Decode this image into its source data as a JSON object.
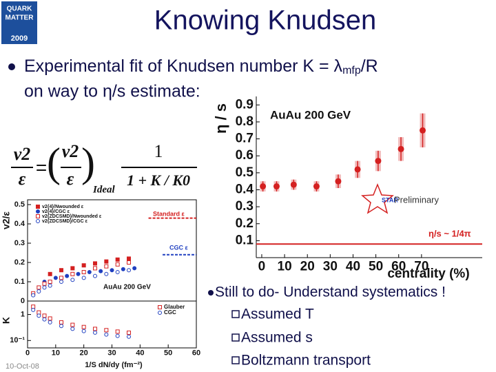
{
  "slide": {
    "logo": [
      "QUARK",
      "MATTER",
      "2009"
    ],
    "title": "Knowing Knudsen",
    "bullet1": {
      "text": "Experimental fit of Knudsen number K = λ",
      "subscript": "mfp",
      "tail": "/R",
      "line2": "on way to η/s estimate:"
    },
    "formula": {
      "lhs_num": "v2",
      "lhs_den": "ε",
      "eq": "=",
      "lparen": "(",
      "rparen": ")",
      "ideal_num": "v2",
      "ideal_den": "ε",
      "ideal": "Ideal",
      "frac_num": "1",
      "frac_den": "1 + K / K0"
    },
    "bullet2": "Still to do- Understand systematics !",
    "subitems": [
      "Assumed T",
      "Assumed s",
      "Boltzmann transport"
    ],
    "footer": "10-Oct-08"
  },
  "chart_data": [
    {
      "type": "scatter",
      "y_label": "η / s",
      "x_label": "centrality (%)",
      "x": [
        0.5,
        6.5,
        14,
        24,
        33.5,
        42,
        51,
        61,
        70.5
      ],
      "series": [
        {
          "color": "#d42020",
          "values": [
            0.42,
            0.42,
            0.43,
            0.42,
            0.45,
            0.52,
            0.57,
            0.64,
            0.75
          ],
          "errors": [
            0.03,
            0.03,
            0.03,
            0.03,
            0.04,
            0.05,
            0.06,
            0.07,
            0.1
          ]
        }
      ],
      "xlim": [
        -2.4,
        96.6
      ],
      "xticks": [
        0,
        10,
        20,
        30,
        40,
        50,
        60,
        70
      ],
      "ylim": [
        0,
        0.95
      ],
      "yticks": [
        0.1,
        0.2,
        0.3,
        0.4,
        0.5,
        0.6,
        0.7,
        0.8,
        0.9
      ],
      "reference_lines": [
        {
          "value": 0.08,
          "label": "η/s ~ 1/4π",
          "color": "#d42020"
        }
      ],
      "annotations": [
        "AuAu 200 GeV",
        "STAR",
        "Preliminary"
      ]
    },
    {
      "type": "scatter",
      "y_label": "v2/ε",
      "legend": "upper left",
      "series": [
        {
          "name": "v2{4}/Nwounded ε",
          "color": "#d42020",
          "marker": "square",
          "filled": true,
          "x": [
            8,
            12,
            16,
            20,
            24,
            28,
            32,
            36
          ],
          "values": [
            0.14,
            0.16,
            0.17,
            0.185,
            0.195,
            0.205,
            0.215,
            0.22
          ]
        },
        {
          "name": "v2{4}/CGC ε",
          "color": "#1f3fc0",
          "marker": "circle",
          "filled": true,
          "x": [
            6,
            10,
            14,
            18,
            22,
            26,
            30,
            34,
            38
          ],
          "values": [
            0.1,
            0.12,
            0.13,
            0.14,
            0.15,
            0.155,
            0.16,
            0.165,
            0.17
          ]
        },
        {
          "name": "v2{ZDCSMD}/Nwounded ε",
          "color": "#d42020",
          "marker": "square",
          "filled": false,
          "x": [
            2,
            4,
            6,
            8,
            12,
            16,
            20,
            24,
            28,
            32,
            36
          ],
          "values": [
            0.04,
            0.07,
            0.09,
            0.1,
            0.12,
            0.14,
            0.15,
            0.17,
            0.18,
            0.19,
            0.2
          ]
        },
        {
          "name": "v2{ZDCSMD}/CGC ε",
          "color": "#1f3fc0",
          "marker": "circle",
          "filled": false,
          "x": [
            2,
            4,
            6,
            8,
            12,
            16,
            20,
            24,
            28,
            32,
            36
          ],
          "values": [
            0.03,
            0.05,
            0.07,
            0.08,
            0.1,
            0.11,
            0.12,
            0.13,
            0.14,
            0.15,
            0.16
          ]
        }
      ],
      "xlim": [
        0,
        60
      ],
      "ylim": [
        0,
        0.525
      ],
      "yticks": [
        0,
        0.1,
        0.2,
        0.3,
        0.4,
        0.5
      ],
      "reference_lines": [
        {
          "value": 0.43,
          "label": "Standard ε",
          "color": "#d42020",
          "from": 43
        },
        {
          "value": 0.24,
          "label": "CGC ε",
          "color": "#1f3fc0",
          "from": 48
        }
      ],
      "annotations": [
        "AuAu 200 GeV"
      ]
    },
    {
      "type": "scatter",
      "y_label": "K",
      "x_label": "1/S dN/dy (fm⁻²)",
      "log_y": true,
      "legend": "upper right",
      "series": [
        {
          "name": "Glauber",
          "color": "#d42020",
          "marker": "square",
          "filled": false,
          "x": [
            2,
            4,
            6,
            8,
            12,
            16,
            20,
            24,
            28,
            32,
            36
          ],
          "values": [
            2,
            1.2,
            0.9,
            0.7,
            0.5,
            0.4,
            0.33,
            0.28,
            0.25,
            0.22,
            0.2
          ]
        },
        {
          "name": "CGC",
          "color": "#1f3fc0",
          "marker": "circle",
          "filled": false,
          "x": [
            2,
            4,
            6,
            8,
            12,
            16,
            20,
            24,
            28,
            32,
            36
          ],
          "values": [
            1.5,
            0.9,
            0.65,
            0.5,
            0.36,
            0.28,
            0.23,
            0.2,
            0.17,
            0.15,
            0.14
          ]
        }
      ],
      "xlim": [
        0,
        60
      ],
      "xticks": [
        0,
        10,
        20,
        30,
        40,
        50,
        60
      ],
      "ylim": [
        0.052,
        3.3
      ],
      "yticks": [
        {
          "value": 0.1,
          "label": "10⁻¹"
        },
        1
      ]
    }
  ]
}
